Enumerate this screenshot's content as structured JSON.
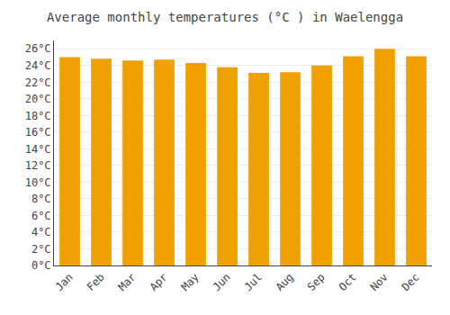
{
  "chart_data": {
    "type": "bar",
    "title": "Average monthly temperatures (°C ) in Waelengga",
    "categories": [
      "Jan",
      "Feb",
      "Mar",
      "Apr",
      "May",
      "Jun",
      "Jul",
      "Aug",
      "Sep",
      "Oct",
      "Nov",
      "Dec"
    ],
    "values": [
      25.0,
      24.8,
      24.6,
      24.7,
      24.3,
      23.8,
      23.1,
      23.2,
      24.0,
      25.1,
      26.0,
      25.1
    ],
    "color": "#F0A000",
    "ylim": [
      0,
      27
    ],
    "yticks": [
      {
        "value": 0,
        "label": "0°C"
      },
      {
        "value": 2,
        "label": "2°C"
      },
      {
        "value": 4,
        "label": "4°C"
      },
      {
        "value": 6,
        "label": "6°C"
      },
      {
        "value": 8,
        "label": "8°C"
      },
      {
        "value": 10,
        "label": "10°C"
      },
      {
        "value": 12,
        "label": "12°C"
      },
      {
        "value": 14,
        "label": "14°C"
      },
      {
        "value": 16,
        "label": "16°C"
      },
      {
        "value": 18,
        "label": "18°C"
      },
      {
        "value": 20,
        "label": "20°C"
      },
      {
        "value": 22,
        "label": "22°C"
      },
      {
        "value": 24,
        "label": "24°C"
      },
      {
        "value": 26,
        "label": "26°C"
      }
    ],
    "grid": true
  }
}
